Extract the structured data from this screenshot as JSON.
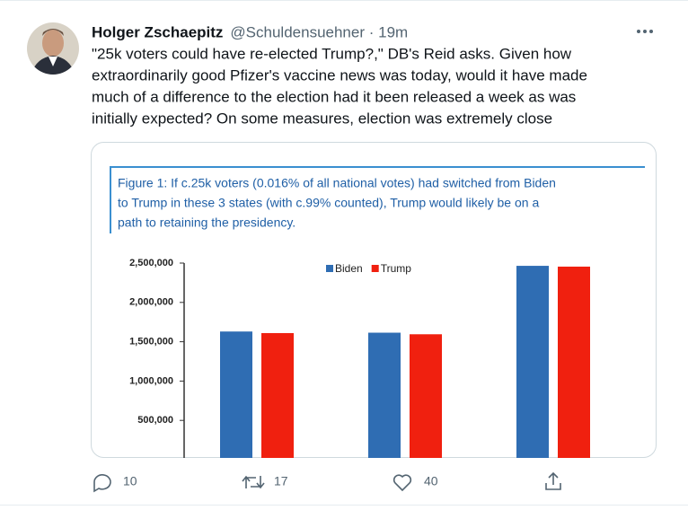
{
  "tweet": {
    "author": "Holger Zschaepitz",
    "handle": "@Schuldensuehner · 19m",
    "text_lines": [
      "\"25k voters could have re-elected Trump?,\" DB's Reid asks. Given how",
      "extraordinarily good Pfizer's vaccine news was today, would it have made",
      "much of a difference to the election had it been released a week as was",
      "initially expected? On some measures, election was extremely close"
    ],
    "replies": "10",
    "retweets": "17",
    "likes": "40"
  },
  "chart_data": {
    "type": "bar",
    "caption_lines": [
      "Figure 1: If c.25k voters (0.016% of all national votes) had switched from Biden",
      "to Trump in these 3 states (with c.99% counted), Trump would likely be on a",
      "path to retaining the presidency."
    ],
    "categories": [
      null,
      null,
      null
    ],
    "series": [
      {
        "name": "Biden",
        "color": "#2f6db3",
        "values": [
          1630000,
          1615000,
          2465000
        ]
      },
      {
        "name": "Trump",
        "color": "#f0200f",
        "values": [
          1610000,
          1595000,
          2455000
        ]
      }
    ],
    "ylim": [
      0,
      2500000
    ],
    "yticks": [
      {
        "value": 500000,
        "label": "500,000"
      },
      {
        "value": 1000000,
        "label": "1,000,000"
      },
      {
        "value": 1500000,
        "label": "1,500,000"
      },
      {
        "value": 2000000,
        "label": "2,000,000"
      },
      {
        "value": 2500000,
        "label": "2,500,000"
      }
    ],
    "legend": "top"
  }
}
